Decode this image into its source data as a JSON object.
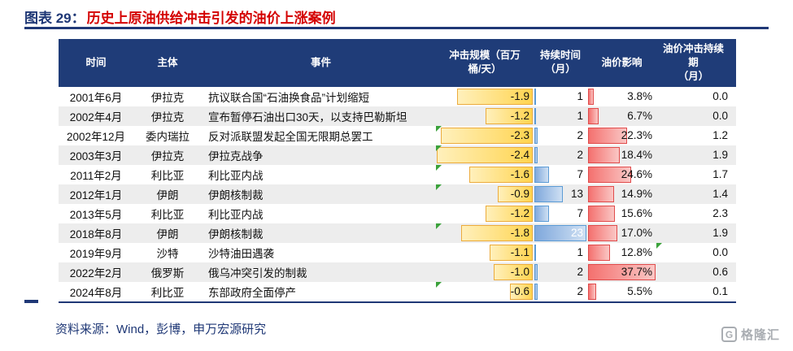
{
  "title": {
    "prefix": "图表 29：",
    "text": "历史上原油供给冲击引发的油价上涨案例"
  },
  "table": {
    "headers": [
      "时间",
      "主体",
      "事件",
      "冲击规模（百万\n桶/天）",
      "持续时间（月）",
      "油价影响",
      "油价冲击持续期\n（月）"
    ],
    "rows": [
      {
        "time": "2001年6月",
        "entity": "伊拉克",
        "event": "抗议联合国“石油换食品”计划缩短",
        "shock": "-1.9",
        "duration": "1",
        "impact": "3.8%",
        "period": "0.0",
        "shock_note": false,
        "period_note": false
      },
      {
        "time": "2002年4月",
        "entity": "伊拉克",
        "event": "宣布暂停石油出口30天，以支持巴勒斯坦",
        "shock": "-1.2",
        "duration": "1",
        "impact": "6.7%",
        "period": "0.0",
        "shock_note": false,
        "period_note": false
      },
      {
        "time": "2002年12月",
        "entity": "委内瑞拉",
        "event": "反对派联盟发起全国无限期总罢工",
        "shock": "-2.3",
        "duration": "2",
        "impact": "22.3%",
        "period": "1.2",
        "shock_note": true,
        "period_note": false
      },
      {
        "time": "2003年3月",
        "entity": "伊拉克",
        "event": "伊拉克战争",
        "shock": "-2.4",
        "duration": "2",
        "impact": "18.4%",
        "period": "1.9",
        "shock_note": true,
        "period_note": false
      },
      {
        "time": "2011年2月",
        "entity": "利比亚",
        "event": "利比亚内战",
        "shock": "-1.6",
        "duration": "7",
        "impact": "24.6%",
        "period": "1.7",
        "shock_note": true,
        "period_note": false
      },
      {
        "time": "2012年1月",
        "entity": "伊朗",
        "event": "伊朗核制裁",
        "shock": "-0.9",
        "duration": "13",
        "impact": "14.9%",
        "period": "1.4",
        "shock_note": true,
        "period_note": false
      },
      {
        "time": "2013年5月",
        "entity": "利比亚",
        "event": "利比亚内战",
        "shock": "-1.2",
        "duration": "7",
        "impact": "15.6%",
        "period": "2.3",
        "shock_note": false,
        "period_note": false
      },
      {
        "time": "2018年8月",
        "entity": "伊朗",
        "event": "伊朗核制裁",
        "shock": "-1.8",
        "duration": "23",
        "impact": "17.0%",
        "period": "1.9",
        "shock_note": true,
        "period_note": false
      },
      {
        "time": "2019年9月",
        "entity": "沙特",
        "event": "沙特油田遇袭",
        "shock": "-1.1",
        "duration": "1",
        "impact": "12.8%",
        "period": "0.0",
        "shock_note": false,
        "period_note": true
      },
      {
        "time": "2022年2月",
        "entity": "俄罗斯",
        "event": "俄乌冲突引发的制裁",
        "shock": "-1.0",
        "duration": "2",
        "impact": "37.7%",
        "period": "0.6",
        "shock_note": false,
        "period_note": false
      },
      {
        "time": "2024年8月",
        "entity": "利比亚",
        "event": "东部政府全面停产",
        "shock": "-0.6",
        "duration": "2",
        "impact": "5.5%",
        "period": "0.1",
        "shock_note": true,
        "period_note": false
      }
    ]
  },
  "chart_data": {
    "type": "table",
    "title": "历史上原油供给冲击引发的油价上涨案例",
    "columns": [
      "时间",
      "主体",
      "事件",
      "冲击规模（百万桶/天）",
      "持续时间（月）",
      "油价影响（%）",
      "油价冲击持续期（月）"
    ],
    "rows": [
      [
        "2001年6月",
        "伊拉克",
        "抗议联合国“石油换食品”计划缩短",
        -1.9,
        1,
        3.8,
        0.0
      ],
      [
        "2002年4月",
        "伊拉克",
        "宣布暂停石油出口30天，以支持巴勒斯坦",
        -1.2,
        1,
        6.7,
        0.0
      ],
      [
        "2002年12月",
        "委内瑞拉",
        "反对派联盟发起全国无限期总罢工",
        -2.3,
        2,
        22.3,
        1.2
      ],
      [
        "2003年3月",
        "伊拉克",
        "伊拉克战争",
        -2.4,
        2,
        18.4,
        1.9
      ],
      [
        "2011年2月",
        "利比亚",
        "利比亚内战",
        -1.6,
        7,
        24.6,
        1.7
      ],
      [
        "2012年1月",
        "伊朗",
        "伊朗核制裁",
        -0.9,
        13,
        14.9,
        1.4
      ],
      [
        "2013年5月",
        "利比亚",
        "利比亚内战",
        -1.2,
        7,
        15.6,
        2.3
      ],
      [
        "2018年8月",
        "伊朗",
        "伊朗核制裁",
        -1.8,
        23,
        17.0,
        1.9
      ],
      [
        "2019年9月",
        "沙特",
        "沙特油田遇袭",
        -1.1,
        1,
        12.8,
        0.0
      ],
      [
        "2022年2月",
        "俄罗斯",
        "俄乌冲突引发的制裁",
        -1.0,
        2,
        37.7,
        0.6
      ],
      [
        "2024年8月",
        "利比亚",
        "东部政府全面停产",
        -0.6,
        2,
        5.5,
        0.1
      ]
    ],
    "data_bars": [
      {
        "column": "冲击规模（百万桶/天）",
        "color_hex": "#FFD44F",
        "anchor": "right",
        "scale_max_abs": 2.4
      },
      {
        "column": "持续时间（月）",
        "color_hex": "#7FA8DC",
        "anchor": "left",
        "scale_max": 23
      },
      {
        "column": "油价影响",
        "color_hex": "#F4716F",
        "anchor": "left",
        "scale_max": 37.7
      }
    ]
  },
  "colors": {
    "navy": "#1F3876",
    "title_red": "#D40000",
    "bar_yellow": "#FFD44F",
    "bar_blue": "#7FA8DC",
    "bar_red": "#F4716F",
    "note_green": "#3BA23B",
    "row_alt": "#EDEDED"
  },
  "source": "资料来源：Wind，彭博，申万宏源研究",
  "logo": {
    "icon": "G",
    "text": "格隆汇"
  }
}
